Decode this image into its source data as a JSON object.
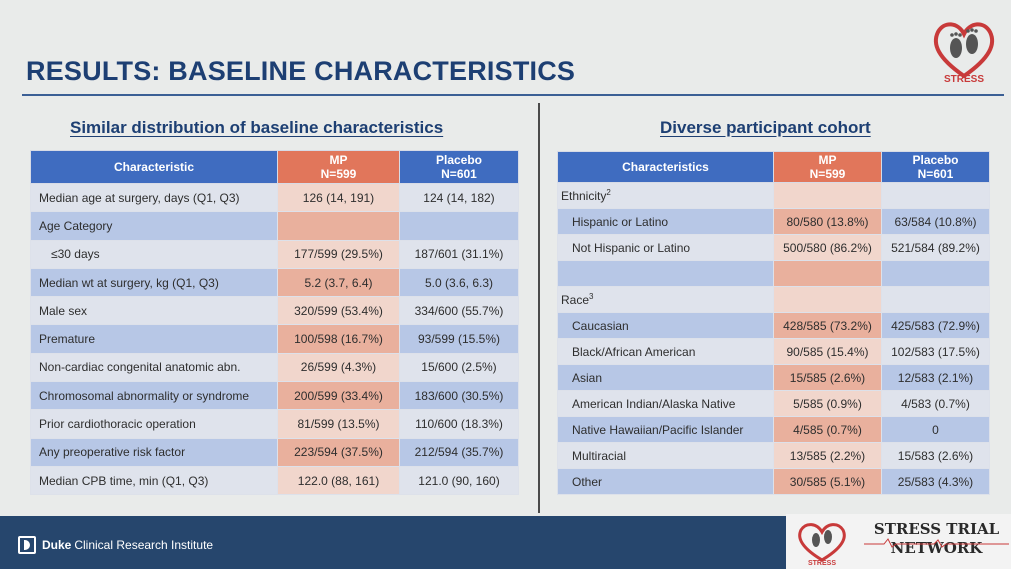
{
  "title": "RESULTS: BASELINE CHARACTERISTICS",
  "logo_text": "STRESS",
  "left": {
    "subtitle": "Similar distribution of baseline characteristics",
    "headers": {
      "col1": "Characteristic",
      "mp_line1": "MP",
      "mp_line2": "N=599",
      "pl_line1": "Placebo",
      "pl_line2": "N=601"
    },
    "rows": [
      {
        "label": "Median age at surgery, days (Q1, Q3)",
        "mp": "126 (14, 191)",
        "placebo": "124 (14, 182)"
      },
      {
        "label": "Age Category",
        "mp": "",
        "placebo": ""
      },
      {
        "label": "≤30 days",
        "mp": "177/599 (29.5%)",
        "placebo": "187/601 (31.1%)"
      },
      {
        "label": "Median wt at surgery, kg (Q1, Q3)",
        "mp": "5.2 (3.7, 6.4)",
        "placebo": "5.0 (3.6, 6.3)"
      },
      {
        "label": "Male sex",
        "mp": "320/599 (53.4%)",
        "placebo": "334/600 (55.7%)"
      },
      {
        "label": "Premature",
        "mp": "100/598 (16.7%)",
        "placebo": "93/599 (15.5%)"
      },
      {
        "label": "Non-cardiac congenital anatomic abn.",
        "mp": "26/599 (4.3%)",
        "placebo": "15/600 (2.5%)"
      },
      {
        "label": "Chromosomal abnormality or syndrome",
        "mp": "200/599 (33.4%)",
        "placebo": "183/600 (30.5%)"
      },
      {
        "label": "Prior cardiothoracic operation",
        "mp": "81/599 (13.5%)",
        "placebo": "110/600 (18.3%)"
      },
      {
        "label": "Any preoperative risk factor",
        "mp": "223/594 (37.5%)",
        "placebo": "212/594 (35.7%)"
      },
      {
        "label": "Median CPB time, min (Q1, Q3)",
        "mp": "122.0 (88, 161)",
        "placebo": "121.0 (90, 160)"
      }
    ]
  },
  "right": {
    "subtitle": "Diverse participant cohort",
    "headers": {
      "col1": "Characteristics",
      "mp_line1": "MP",
      "mp_line2": "N=599",
      "pl_line1": "Placebo",
      "pl_line2": "N=601"
    },
    "ethnicity_label": "Ethnicity",
    "ethnicity_sup": "2",
    "race_label": "Race",
    "race_sup": "3",
    "ethnicity_rows": [
      {
        "label": "Hispanic or Latino",
        "mp": "80/580 (13.8%)",
        "placebo": "63/584 (10.8%)"
      },
      {
        "label": "Not Hispanic or Latino",
        "mp": "500/580 (86.2%)",
        "placebo": "521/584 (89.2%)"
      }
    ],
    "race_rows": [
      {
        "label": "Caucasian",
        "mp": "428/585 (73.2%)",
        "placebo": "425/583 (72.9%)"
      },
      {
        "label": "Black/African American",
        "mp": "90/585 (15.4%)",
        "placebo": "102/583 (17.5%)"
      },
      {
        "label": "Asian",
        "mp": "15/585 (2.6%)",
        "placebo": "12/583 (2.1%)"
      },
      {
        "label": "American Indian/Alaska Native",
        "mp": "5/585 (0.9%)",
        "placebo": "4/583 (0.7%)"
      },
      {
        "label": "Native Hawaiian/Pacific Islander",
        "mp": "4/585 (0.7%)",
        "placebo": "0"
      },
      {
        "label": "Multiracial",
        "mp": "13/585 (2.2%)",
        "placebo": "15/583 (2.6%)"
      },
      {
        "label": "Other",
        "mp": "30/585 (5.1%)",
        "placebo": "25/583 (4.3%)"
      }
    ]
  },
  "footer": {
    "duke_bold": "Duke",
    "duke_rest": "Clinical Research Institute",
    "network_line1": "STRESS TRIAL",
    "network_line2": "NETWORK"
  },
  "colors": {
    "header_blue": "#3f6cc0",
    "header_mp": "#e1765b",
    "title_navy": "#1d3f73",
    "footer_navy": "#26466d"
  }
}
